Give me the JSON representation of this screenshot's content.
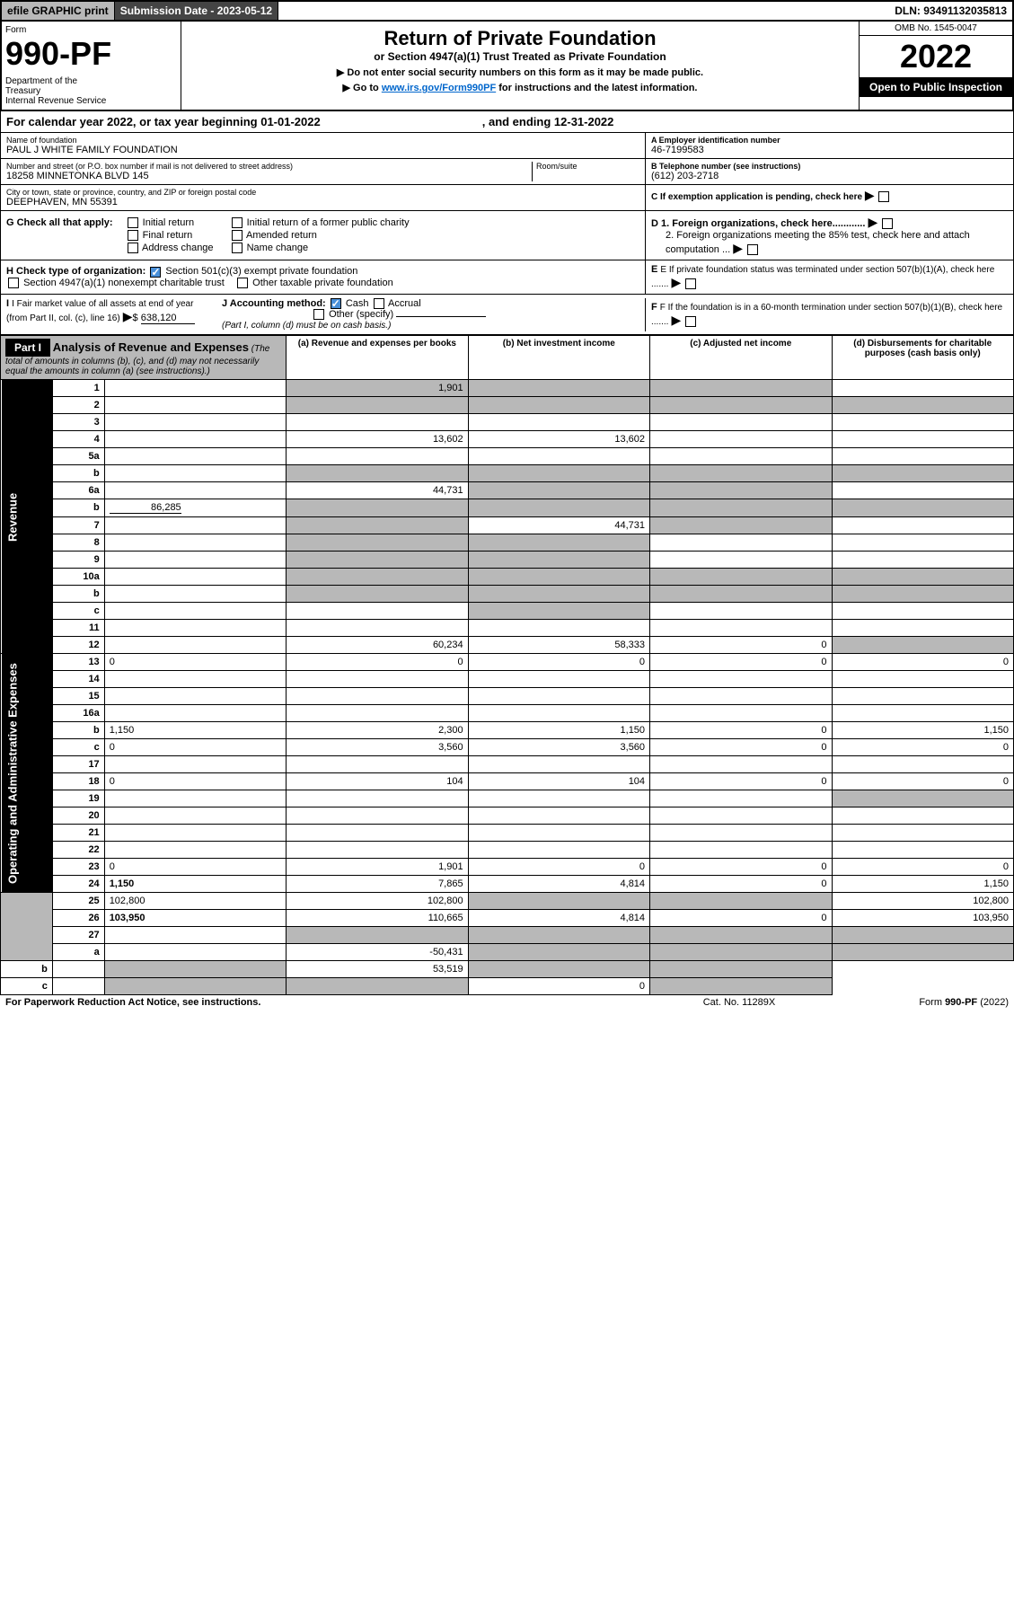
{
  "topbar": {
    "efile": "efile GRAPHIC print",
    "subdate_label": "Submission Date - ",
    "subdate": "2023-05-12",
    "dln_label": "DLN: ",
    "dln": "93491132035813"
  },
  "header": {
    "form_word": "Form",
    "form_num": "990-PF",
    "dept": "Department of the Treasury\nInternal Revenue Service",
    "title": "Return of Private Foundation",
    "subtitle": "or Section 4947(a)(1) Trust Treated as Private Foundation",
    "note1": "▶ Do not enter social security numbers on this form as it may be made public.",
    "note2_pre": "▶ Go to ",
    "note2_link": "www.irs.gov/Form990PF",
    "note2_post": " for instructions and the latest information.",
    "omb": "OMB No. 1545-0047",
    "year": "2022",
    "inspect": "Open to Public Inspection"
  },
  "cal": {
    "text": "For calendar year 2022, or tax year beginning 01-01-2022",
    "end": ", and ending 12-31-2022"
  },
  "info": {
    "name_lbl": "Name of foundation",
    "name": "PAUL J WHITE FAMILY FOUNDATION",
    "addr_lbl": "Number and street (or P.O. box number if mail is not delivered to street address)",
    "addr": "18258 MINNETONKA BLVD 145",
    "room_lbl": "Room/suite",
    "city_lbl": "City or town, state or province, country, and ZIP or foreign postal code",
    "city": "DEEPHAVEN, MN  55391",
    "ein_lbl": "A Employer identification number",
    "ein": "46-7199583",
    "tel_lbl": "B Telephone number (see instructions)",
    "tel": "(612) 203-2718",
    "c_lbl": "C If exemption application is pending, check here",
    "d1": "D 1. Foreign organizations, check here............",
    "d2": "2. Foreign organizations meeting the 85% test, check here and attach computation ...",
    "e_lbl": "E If private foundation status was terminated under section 507(b)(1)(A), check here .......",
    "f_lbl": "F If the foundation is in a 60-month termination under section 507(b)(1)(B), check here ......."
  },
  "g": {
    "lbl": "G Check all that apply:",
    "opts": [
      "Initial return",
      "Final return",
      "Address change",
      "Initial return of a former public charity",
      "Amended return",
      "Name change"
    ]
  },
  "h": {
    "lbl": "H Check type of organization:",
    "opt1": "Section 501(c)(3) exempt private foundation",
    "opt2": "Section 4947(a)(1) nonexempt charitable trust",
    "opt3": "Other taxable private foundation"
  },
  "i": {
    "lbl": "I Fair market value of all assets at end of year (from Part II, col. (c), line 16)",
    "val": "638,120"
  },
  "j": {
    "lbl": "J Accounting method:",
    "cash": "Cash",
    "accrual": "Accrual",
    "other": "Other (specify)",
    "note": "(Part I, column (d) must be on cash basis.)"
  },
  "part1": {
    "label": "Part I",
    "title": "Analysis of Revenue and Expenses",
    "subtitle": "(The total of amounts in columns (b), (c), and (d) may not necessarily equal the amounts in column (a) (see instructions).)",
    "cols": {
      "a": "(a) Revenue and expenses per books",
      "b": "(b) Net investment income",
      "c": "(c) Adjusted net income",
      "d": "(d) Disbursements for charitable purposes (cash basis only)"
    }
  },
  "sections": {
    "revenue": "Revenue",
    "expenses": "Operating and Administrative Expenses"
  },
  "rows": [
    {
      "n": "1",
      "d": "",
      "a": "1,901",
      "b": "",
      "c": "",
      "das": true,
      "dbs": true,
      "dcs": true
    },
    {
      "n": "2",
      "d": "",
      "a": "",
      "b": "",
      "c": "",
      "all_shade": true
    },
    {
      "n": "3",
      "d": "",
      "a": "",
      "b": "",
      "c": ""
    },
    {
      "n": "4",
      "d": "",
      "a": "13,602",
      "b": "13,602",
      "c": ""
    },
    {
      "n": "5a",
      "d": "",
      "a": "",
      "b": "",
      "c": ""
    },
    {
      "n": "b",
      "d": "",
      "a": "",
      "b": "",
      "c": "",
      "all_shade": true
    },
    {
      "n": "6a",
      "d": "",
      "a": "44,731",
      "b": "",
      "c": "",
      "dbs": true,
      "dcs": true
    },
    {
      "n": "b",
      "d": "",
      "extra": "86,285",
      "a": "",
      "b": "",
      "c": "",
      "all_shade": true
    },
    {
      "n": "7",
      "d": "",
      "a": "",
      "b": "44,731",
      "c": "",
      "das": true,
      "dcs": true
    },
    {
      "n": "8",
      "d": "",
      "a": "",
      "b": "",
      "c": "",
      "das": true,
      "dbs": true
    },
    {
      "n": "9",
      "d": "",
      "a": "",
      "b": "",
      "c": "",
      "das": true,
      "dbs": true
    },
    {
      "n": "10a",
      "d": "",
      "a": "",
      "b": "",
      "c": "",
      "all_shade": true
    },
    {
      "n": "b",
      "d": "",
      "a": "",
      "b": "",
      "c": "",
      "all_shade": true
    },
    {
      "n": "c",
      "d": "",
      "a": "",
      "b": "",
      "c": "",
      "dbs": true
    },
    {
      "n": "11",
      "d": "",
      "a": "",
      "b": "",
      "c": ""
    },
    {
      "n": "12",
      "d": "",
      "a": "60,234",
      "b": "58,333",
      "c": "0",
      "bold": true,
      "dds": true
    },
    {
      "n": "13",
      "d": "0",
      "a": "0",
      "b": "0",
      "c": "0",
      "sect": "exp"
    },
    {
      "n": "14",
      "d": "",
      "a": "",
      "b": "",
      "c": ""
    },
    {
      "n": "15",
      "d": "",
      "a": "",
      "b": "",
      "c": ""
    },
    {
      "n": "16a",
      "d": "",
      "a": "",
      "b": "",
      "c": ""
    },
    {
      "n": "b",
      "d": "1,150",
      "a": "2,300",
      "b": "1,150",
      "c": "0"
    },
    {
      "n": "c",
      "d": "0",
      "a": "3,560",
      "b": "3,560",
      "c": "0"
    },
    {
      "n": "17",
      "d": "",
      "a": "",
      "b": "",
      "c": ""
    },
    {
      "n": "18",
      "d": "0",
      "a": "104",
      "b": "104",
      "c": "0"
    },
    {
      "n": "19",
      "d": "",
      "a": "",
      "b": "",
      "c": "",
      "dds": true
    },
    {
      "n": "20",
      "d": "",
      "a": "",
      "b": "",
      "c": ""
    },
    {
      "n": "21",
      "d": "",
      "a": "",
      "b": "",
      "c": ""
    },
    {
      "n": "22",
      "d": "",
      "a": "",
      "b": "",
      "c": ""
    },
    {
      "n": "23",
      "d": "0",
      "a": "1,901",
      "b": "0",
      "c": "0"
    },
    {
      "n": "24",
      "d": "1,150",
      "a": "7,865",
      "b": "4,814",
      "c": "0",
      "bold": true
    },
    {
      "n": "25",
      "d": "102,800",
      "a": "102,800",
      "b": "",
      "c": "",
      "dbs": true,
      "dcs": true
    },
    {
      "n": "26",
      "d": "103,950",
      "a": "110,665",
      "b": "4,814",
      "c": "0",
      "bold": true
    },
    {
      "n": "27",
      "d": "",
      "a": "",
      "b": "",
      "c": "",
      "all_shade": true
    },
    {
      "n": "a",
      "d": "",
      "a": "-50,431",
      "b": "",
      "c": "",
      "bold": true,
      "dbs": true,
      "dcs": true,
      "dds": true
    },
    {
      "n": "b",
      "d": "",
      "a": "",
      "b": "53,519",
      "c": "",
      "bold": true,
      "das": true,
      "dcs": true,
      "dds": true
    },
    {
      "n": "c",
      "d": "",
      "a": "",
      "b": "",
      "c": "0",
      "bold": true,
      "das": true,
      "dbs": true,
      "dds": true
    }
  ],
  "footer": {
    "left": "For Paperwork Reduction Act Notice, see instructions.",
    "mid": "Cat. No. 11289X",
    "right": "Form 990-PF (2022)"
  }
}
